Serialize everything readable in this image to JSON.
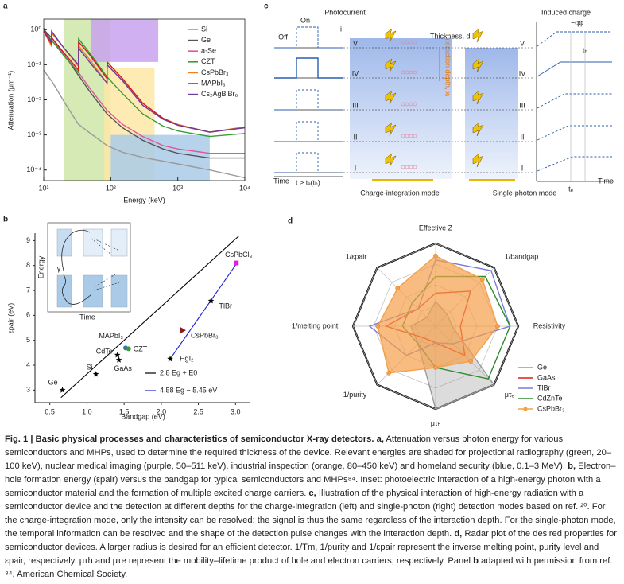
{
  "panel_a": {
    "label": "a",
    "ylabel": "Attenuation (μm⁻¹)",
    "xlabel": "Energy (keV)",
    "xscale": "log",
    "yscale": "log",
    "xlim": [
      10,
      10000
    ],
    "ylim": [
      5e-05,
      2
    ],
    "xticks": [
      {
        "value": 10,
        "label": "10¹"
      },
      {
        "value": 100,
        "label": "10²"
      },
      {
        "value": 1000,
        "label": "10³"
      },
      {
        "value": 10000,
        "label": "10⁴"
      }
    ],
    "yticks": [
      {
        "value": 0.0001,
        "label": "10⁻⁴"
      },
      {
        "value": 0.001,
        "label": "10⁻³"
      },
      {
        "value": 0.01,
        "label": "10⁻²"
      },
      {
        "value": 0.1,
        "label": "10⁻¹"
      },
      {
        "value": 1,
        "label": "10⁰"
      }
    ],
    "regions": [
      {
        "color": "#cfe6a8",
        "x": [
          20,
          100
        ],
        "y": [
          5e-05,
          2
        ]
      },
      {
        "color": "#fde8a6",
        "x": [
          80,
          450
        ],
        "y": [
          5e-05,
          0.08
        ]
      },
      {
        "color": "#a9cbe8",
        "x": [
          100,
          3000
        ],
        "y": [
          5e-05,
          0.001
        ]
      },
      {
        "color": "#c9a2ee",
        "x": [
          50,
          511
        ],
        "y": [
          0.12,
          2
        ]
      }
    ],
    "x": [
      10,
      13,
      13.1,
      20,
      33,
      33.2,
      50,
      88,
      88.1,
      150,
      300,
      600,
      1000,
      3000,
      10000
    ],
    "series": [
      {
        "name": "Si",
        "color": "#9a9a9a",
        "values": [
          0.07,
          0.035,
          0.035,
          0.009,
          0.002,
          0.002,
          0.0011,
          0.0005,
          0.0005,
          0.00032,
          0.00023,
          0.00018,
          0.00015,
          0.0001,
          6e-05
        ]
      },
      {
        "name": "Ge",
        "color": "#555555",
        "values": [
          1.0,
          0.6,
          0.6,
          0.2,
          0.05,
          0.05,
          0.016,
          0.004,
          0.004,
          0.0016,
          0.0007,
          0.0004,
          0.0003,
          0.00022,
          0.00022
        ]
      },
      {
        "name": "a-Se",
        "color": "#e0559b",
        "values": [
          0.9,
          0.5,
          0.5,
          0.2,
          0.06,
          0.06,
          0.02,
          0.005,
          0.005,
          0.002,
          0.0009,
          0.0005,
          0.0004,
          0.0003,
          0.0003
        ]
      },
      {
        "name": "CZT",
        "color": "#3a9b3a",
        "values": [
          1.0,
          0.5,
          0.5,
          0.18,
          0.06,
          0.55,
          0.2,
          0.045,
          0.045,
          0.015,
          0.004,
          0.0018,
          0.0013,
          0.0009,
          0.0011
        ]
      },
      {
        "name": "CsPbBr₃",
        "color": "#f07f22",
        "values": [
          0.9,
          0.35,
          0.8,
          0.3,
          0.09,
          0.35,
          0.13,
          0.03,
          0.12,
          0.04,
          0.008,
          0.003,
          0.002,
          0.0012,
          0.0017
        ]
      },
      {
        "name": "MAPbI₃",
        "color": "#d7191c",
        "values": [
          0.9,
          0.4,
          0.6,
          0.22,
          0.07,
          0.45,
          0.18,
          0.04,
          0.12,
          0.04,
          0.008,
          0.003,
          0.0019,
          0.0012,
          0.0016
        ]
      },
      {
        "name": "Cs₂AgBiBr₆",
        "color": "#6a3d9a",
        "values": [
          1.1,
          0.45,
          0.9,
          0.3,
          0.1,
          0.3,
          0.11,
          0.03,
          0.1,
          0.035,
          0.007,
          0.0028,
          0.0019,
          0.0012,
          0.0016
        ]
      }
    ]
  },
  "panel_b": {
    "label": "b",
    "ylabel": "εpair (eV)",
    "xlabel": "Bandgap (eV)",
    "xlim": [
      0.3,
      3.2
    ],
    "ylim": [
      2.5,
      9.3
    ],
    "xticks": [
      0.5,
      {
        "value": 1.0,
        "label": "1.0"
      },
      1.5,
      {
        "value": 2.0,
        "label": "2.0"
      },
      2.5,
      {
        "value": 3.0,
        "label": "3.0"
      }
    ],
    "yticks": [
      3,
      4,
      5,
      6,
      7,
      8,
      9
    ],
    "points": [
      {
        "label": "Ge",
        "x": 0.67,
        "y": 3.0,
        "marker": "star",
        "color": "#000000"
      },
      {
        "label": "Si",
        "x": 1.12,
        "y": 3.64,
        "marker": "star",
        "color": "#000000"
      },
      {
        "label": "GaAs",
        "x": 1.43,
        "y": 4.21,
        "marker": "star",
        "color": "#000000"
      },
      {
        "label": "CdTe",
        "x": 1.41,
        "y": 4.41,
        "marker": "star",
        "color": "#000000"
      },
      {
        "label": "MAPbI₃",
        "x": 1.52,
        "y": 4.69,
        "marker": "circle",
        "color": "#3b6fb6"
      },
      {
        "label": "CZT",
        "x": 1.56,
        "y": 4.66,
        "marker": "circle",
        "color": "#3a9b3a"
      },
      {
        "label": "HgI₂",
        "x": 2.12,
        "y": 4.25,
        "marker": "star",
        "color": "#000000"
      },
      {
        "label": "CsPbBr₃",
        "x": 2.29,
        "y": 5.4,
        "marker": "triangle",
        "color": "#8b1a1a"
      },
      {
        "label": "TlBr",
        "x": 2.67,
        "y": 6.58,
        "marker": "star",
        "color": "#000000"
      },
      {
        "label": "CsPbCl₃",
        "x": 3.01,
        "y": 8.1,
        "marker": "square",
        "color": "#e020e0"
      }
    ],
    "fits": [
      {
        "label": "2.8 Eg + E0",
        "color": "#000000",
        "x": [
          0.65,
          3.05
        ],
        "y": [
          2.7,
          9.2
        ]
      },
      {
        "label": "4.58 Eg − 5.45 eV",
        "color": "#2020d0",
        "x": [
          2.12,
          3.02
        ],
        "y": [
          4.25,
          8.1
        ]
      }
    ],
    "inset": {
      "energy": "Energy",
      "time": "Time",
      "photon": "γ"
    }
  },
  "panel_c": {
    "label": "c",
    "photocurrent": "Photocurrent",
    "on": "On",
    "off": "Off",
    "top_mark": "i",
    "levels": [
      "V",
      "IV",
      "III",
      "II",
      "I"
    ],
    "thickness": "Thickness, d",
    "depth": "Interaction depth, xᵢ",
    "induced_charge": "Induced charge",
    "charge": "−qφ",
    "t_h": "tₕ",
    "t_e": "tₑ",
    "time": "Time",
    "time_condition": "t > tₑ(tₕ)",
    "mode_left": "Charge-integration mode",
    "mode_right": "Single-photon mode"
  },
  "panel_d": {
    "label": "d",
    "rlim": [
      0,
      1
    ],
    "rticks": [
      0.25,
      0.5,
      0.75,
      1
    ],
    "axes": [
      "Effective Z",
      "1/bandgap",
      "Resistivity",
      "μτₑ",
      "μτₕ",
      "1/purity",
      "1/melting point",
      "1/εpair"
    ],
    "series": [
      {
        "name": "Ge",
        "color": "#9a9a9a",
        "fill": true,
        "values": [
          0.3,
          0.2,
          0.2,
          1.0,
          1.0,
          0.3,
          0.3,
          0.15
        ]
      },
      {
        "name": "GaAs",
        "color": "#e31a1c",
        "fill": false,
        "values": [
          0.4,
          0.6,
          0.3,
          0.5,
          0.2,
          0.2,
          0.6,
          0.3
        ]
      },
      {
        "name": "TlBr",
        "color": "#7b7bdb",
        "fill": false,
        "values": [
          0.8,
          0.95,
          0.9,
          0.3,
          0.2,
          0.5,
          0.8,
          0.3
        ]
      },
      {
        "name": "CdZnTe",
        "color": "#2e8b2e",
        "fill": false,
        "values": [
          0.6,
          0.85,
          0.9,
          0.9,
          0.5,
          0.3,
          0.4,
          0.4
        ]
      },
      {
        "name": "CsPbBr₃",
        "color": "#f5a04a",
        "fill": true,
        "values": [
          0.85,
          0.8,
          0.75,
          0.6,
          0.5,
          0.8,
          0.7,
          0.65
        ]
      }
    ]
  },
  "caption": {
    "parts": [
      {
        "text": "Fig. 1 | Basic physical processes and characteristics of semiconductor X-ray detectors.",
        "bold": true
      },
      {
        "text": " a,",
        "bold": true
      },
      {
        "text": " Attenuation versus photon energy for various semiconductors and MHPs, used to determine the required thickness of the device. Relevant energies are shaded for projectional radiography (green, 20–100 keV), nuclear medical imaging (purple, 50–511 keV), industrial inspection (orange, 80–450 keV) and homeland security (blue, 0.1–3 MeV).",
        "bold": false
      },
      {
        "text": " b,",
        "bold": true
      },
      {
        "text": " Electron–hole formation energy (εpair) versus the bandgap for typical semiconductors and MHPs⁸⁴. Inset: photoelectric interaction of a high-energy photon with a semiconductor material and the formation of multiple excited charge carriers.",
        "bold": false
      },
      {
        "text": " c,",
        "bold": true
      },
      {
        "text": " Illustration of the physical interaction of high-energy radiation with a semiconductor device and the detection at different depths for the charge-integration (left) and single-photon (right) detection modes based on ref. ²⁰. For the charge-integration mode, only the intensity can be resolved; the signal is thus the same regardless of the interaction depth. For the single-photon mode, the temporal information can be resolved and the shape of the detection pulse changes with the interaction depth.",
        "bold": false
      },
      {
        "text": " d,",
        "bold": true
      },
      {
        "text": " Radar plot of the desired properties for semiconductor devices. A larger radius is desired for an efficient detector. 1/Tm, 1/purity and 1/εpair represent the inverse melting point, purity level and εpair, respectively. μτh and μτe represent the mobility–lifetime product of hole and electron carriers, respectively. Panel",
        "bold": false
      },
      {
        "text": " b",
        "bold": true
      },
      {
        "text": " adapted with permission from ref. ⁸⁴, American Chemical Society.",
        "bold": false
      }
    ]
  }
}
